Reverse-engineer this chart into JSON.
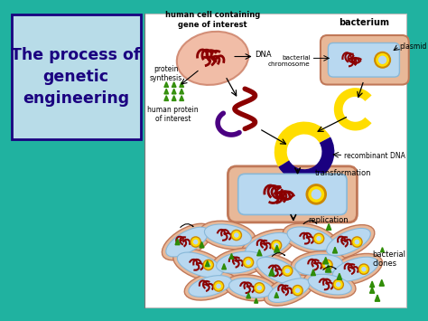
{
  "title": "The process of\ngenetic\nengineering",
  "title_color": "#1a0080",
  "title_bg": "#b8dce8",
  "title_border": "#1a0080",
  "bg_color": "#20b2a0",
  "right_bg": "#ffffff",
  "labels": {
    "human_cell": "human cell containing\ngene of interest",
    "bacterium": "bacterium",
    "dna": "DNA",
    "bacterial_chromosome": "bacterial\nchromosome",
    "plasmid": "plasmid",
    "protein_synthesis": "protein\nsynthesis",
    "human_protein": "human protein\nof interest",
    "recombinant_dna": "recombinant DNA",
    "transformation": "transformation",
    "replication": "replication",
    "bacterial_clones": "bacterial\nclones"
  },
  "figsize": [
    4.74,
    3.55
  ],
  "dpi": 100
}
